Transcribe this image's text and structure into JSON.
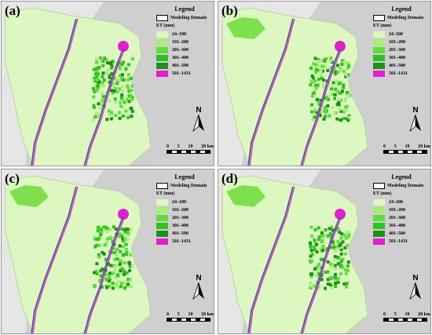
{
  "panels": [
    {
      "label": "(a)",
      "variant": "a"
    },
    {
      "label": "(b)",
      "variant": "b"
    },
    {
      "label": "(c)",
      "variant": "c"
    },
    {
      "label": "(d)",
      "variant": "d"
    }
  ],
  "legend": {
    "title": "Legend",
    "domain_label": "Modeling Domain",
    "header": "ET (mm)",
    "classes": [
      {
        "label": "24–100",
        "color": "#dcf8c0"
      },
      {
        "label": "101–200",
        "color": "#a6f07a"
      },
      {
        "label": "201–300",
        "color": "#5fdd3a"
      },
      {
        "label": "301–400",
        "color": "#2ec21f"
      },
      {
        "label": "401–500",
        "color": "#1e8f1a"
      },
      {
        "label": "501–1431",
        "color": "#e21fd0"
      }
    ]
  },
  "north_letter": "N",
  "scale": {
    "ticks": [
      "0",
      "5",
      "10",
      "20 km"
    ]
  },
  "colors": {
    "background": "#cfcfcf",
    "hillshade": "#e6e6e6",
    "domain": "#dcf8c0",
    "river": "#6a4fae",
    "outer_river": "#d01bb0"
  }
}
